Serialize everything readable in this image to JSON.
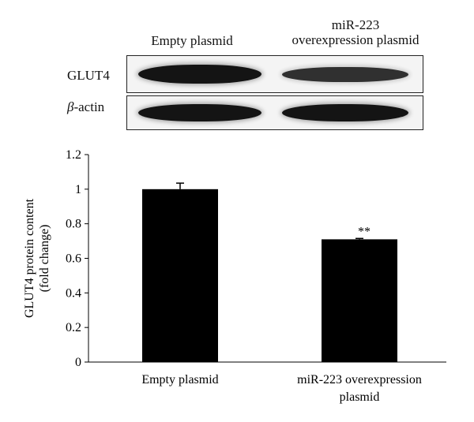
{
  "blot": {
    "lanes": [
      "Empty plasmid",
      "miR-223\noverexpression plasmid"
    ],
    "rows": [
      {
        "label": "GLUT4",
        "italic_prefix": "",
        "suffix": "GLUT4",
        "intensities": [
          1.0,
          0.71
        ]
      },
      {
        "label": "β-actin",
        "italic_prefix": "β",
        "suffix": "-actin",
        "intensities": [
          1.0,
          1.0
        ]
      }
    ],
    "band_color": "#141414"
  },
  "chart_data": {
    "type": "bar",
    "categories": [
      "Empty plasmid",
      "miR-223 overexpression\nplasmid"
    ],
    "values": [
      1.0,
      0.71
    ],
    "error": [
      0.035,
      0.005
    ],
    "annotations": [
      "",
      "**"
    ],
    "ylabel": "GLUT4 protein content\n(fold change)",
    "xlabel": "",
    "ylim": [
      0,
      1.2
    ],
    "yticks": [
      "0",
      "0.2",
      "0.4",
      "0.6",
      "0.8",
      "1",
      "1.2"
    ],
    "grid": false,
    "bar_color": "#000000"
  }
}
